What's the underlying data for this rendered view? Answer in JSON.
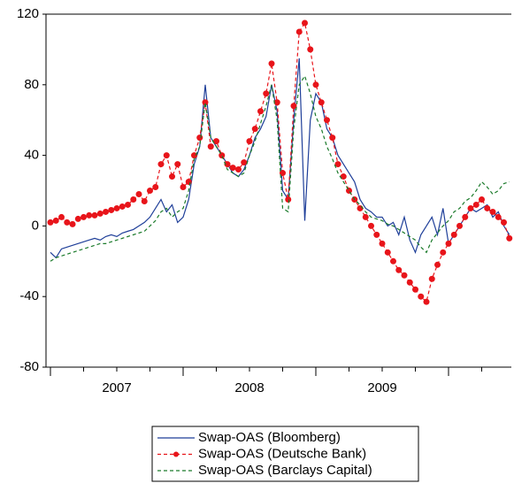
{
  "chart_data": {
    "type": "line",
    "categories": [
      null,
      null,
      null,
      null,
      null,
      null,
      null,
      null,
      null,
      null,
      null,
      null,
      "2007",
      null,
      null,
      null,
      null,
      null,
      null,
      null,
      null,
      null,
      null,
      null,
      null,
      null,
      null,
      null,
      null,
      null,
      null,
      null,
      null,
      null,
      null,
      null,
      "2008",
      null,
      null,
      null,
      null,
      null,
      null,
      null,
      null,
      null,
      null,
      null,
      null,
      null,
      null,
      null,
      null,
      null,
      null,
      null,
      null,
      null,
      null,
      null,
      "2009",
      null,
      null,
      null,
      null,
      null,
      null,
      null,
      null,
      null,
      null,
      null,
      null,
      null,
      null,
      null,
      null,
      null,
      null,
      null,
      null,
      null,
      null,
      null
    ],
    "ylim": [
      -80,
      120
    ],
    "yticks": [
      -80,
      -40,
      0,
      40,
      80,
      120
    ],
    "grid": false,
    "series": [
      {
        "name": "Swap-OAS (Bloomberg)",
        "color": "#1f3f99",
        "style": "solid",
        "markers": false,
        "values": [
          -15,
          -18,
          -13,
          -12,
          -11,
          -10,
          -9,
          -8,
          -7,
          -8,
          -6,
          -5,
          -6,
          -4,
          -3,
          -2,
          0,
          2,
          5,
          10,
          15,
          8,
          12,
          2,
          5,
          15,
          35,
          45,
          80,
          50,
          45,
          40,
          35,
          30,
          28,
          32,
          40,
          50,
          55,
          62,
          80,
          65,
          20,
          15,
          60,
          95,
          3,
          60,
          75,
          70,
          55,
          50,
          40,
          35,
          30,
          25,
          15,
          10,
          8,
          5,
          5,
          0,
          2,
          -5,
          5,
          -8,
          -15,
          -5,
          0,
          5,
          -5,
          10,
          -10,
          -5,
          0,
          5,
          10,
          8,
          10,
          12,
          5,
          8,
          0,
          -5
        ]
      },
      {
        "name": "Swap-OAS (Deutsche Bank)",
        "color": "#e8141a",
        "style": "dashed",
        "markers": true,
        "values": [
          2,
          3,
          5,
          2,
          1,
          4,
          5,
          6,
          6,
          7,
          8,
          9,
          10,
          11,
          12,
          15,
          18,
          14,
          20,
          22,
          35,
          40,
          28,
          35,
          22,
          25,
          40,
          50,
          70,
          45,
          48,
          40,
          35,
          33,
          32,
          36,
          48,
          55,
          65,
          75,
          92,
          70,
          30,
          15,
          68,
          110,
          115,
          100,
          80,
          70,
          60,
          50,
          35,
          28,
          20,
          15,
          10,
          5,
          0,
          -5,
          -10,
          -15,
          -20,
          -25,
          -28,
          -32,
          -36,
          -40,
          -43,
          -30,
          -22,
          -15,
          -10,
          -5,
          0,
          5,
          10,
          12,
          15,
          10,
          8,
          5,
          2,
          -7
        ]
      },
      {
        "name": "Swap-OAS (Barclays Capital)",
        "color": "#1a7a2a",
        "style": "dashed",
        "markers": false,
        "values": [
          -20,
          -18,
          -17,
          -16,
          -15,
          -14,
          -13,
          -12,
          -11,
          -10,
          -10,
          -9,
          -8,
          -7,
          -6,
          -5,
          -4,
          -3,
          0,
          3,
          8,
          10,
          5,
          8,
          10,
          20,
          38,
          45,
          70,
          50,
          45,
          40,
          32,
          30,
          28,
          30,
          40,
          48,
          58,
          68,
          80,
          60,
          10,
          8,
          55,
          80,
          85,
          75,
          62,
          55,
          45,
          38,
          30,
          25,
          20,
          15,
          12,
          8,
          5,
          4,
          3,
          1,
          0,
          -2,
          -4,
          -6,
          -8,
          -12,
          -15,
          -8,
          -4,
          0,
          3,
          8,
          10,
          14,
          16,
          20,
          25,
          22,
          18,
          20,
          24,
          25
        ]
      }
    ]
  }
}
